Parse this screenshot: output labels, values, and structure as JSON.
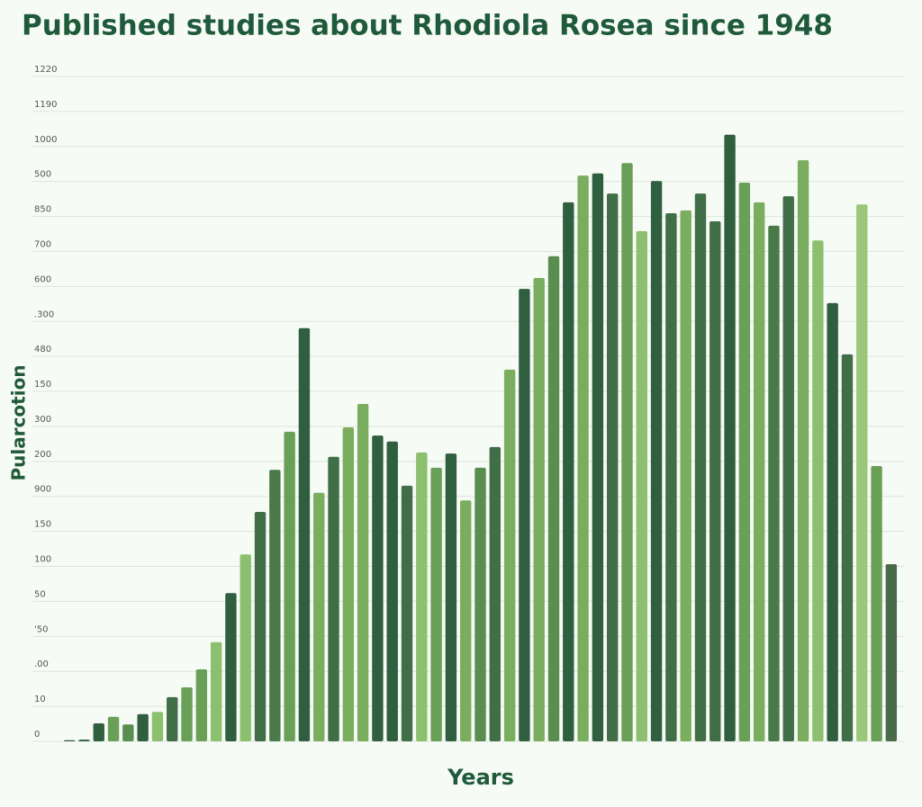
{
  "chart_data": {
    "type": "bar",
    "title": "Published studies about Rhodiola Rosea since 1948",
    "x_label": "Years",
    "y_label": "Pularcotion",
    "categories": [
      null,
      null,
      null,
      null,
      null,
      null,
      null,
      null,
      null,
      null,
      null,
      null,
      null,
      null,
      null,
      null,
      null,
      null,
      null,
      null,
      null,
      null,
      null,
      null,
      null,
      null,
      null,
      null,
      null,
      null,
      null,
      null,
      null,
      null,
      null,
      null,
      null,
      null,
      null,
      null,
      null,
      null,
      null,
      null,
      null,
      null,
      null,
      null,
      null,
      null,
      null,
      null,
      null,
      null,
      null,
      null,
      null
    ],
    "values": [
      2,
      3,
      33,
      45,
      31,
      50,
      54,
      81,
      99,
      132,
      182,
      272,
      343,
      421,
      498,
      568,
      758,
      456,
      522,
      576,
      619,
      561,
      550,
      469,
      530,
      502,
      528,
      442,
      502,
      540,
      682,
      830,
      850,
      890,
      989,
      1038,
      1042,
      1005,
      1061,
      936,
      1028,
      969,
      974,
      1005,
      954,
      1113,
      1025,
      989,
      946,
      1000,
      1066,
      919,
      804,
      710,
      985,
      505,
      325
    ],
    "colors": [
      "#2f5f3f",
      "#2f5f3f",
      "#2f5f3f",
      "#6a9f58",
      "#5a8d50",
      "#2f5f3f",
      "#8cbf6e",
      "#3f6e47",
      "#6a9f58",
      "#6a9f58",
      "#8cbf6e",
      "#2f5f3f",
      "#8cbf6e",
      "#3f6e47",
      "#4a7a4a",
      "#6a9f58",
      "#2f5f3f",
      "#7aad5e",
      "#3f6e47",
      "#7aad5e",
      "#7aad5e",
      "#2f5f3f",
      "#2f5f3f",
      "#3f6e47",
      "#8cbf6e",
      "#6a9f58",
      "#2f5f3f",
      "#7aad5e",
      "#5a8d50",
      "#3f6e47",
      "#7aad5e",
      "#2f5f3f",
      "#7aad5e",
      "#5a8d50",
      "#2f5f3f",
      "#7aad5e",
      "#2f5f3f",
      "#3f6e47",
      "#6a9f58",
      "#8cbf6e",
      "#2f5f3f",
      "#3f6e47",
      "#7aad5e",
      "#3f6e47",
      "#3f6e47",
      "#2f5f3f",
      "#6a9f58",
      "#7aad5e",
      "#4a7a4a",
      "#3f6e47",
      "#7aad5e",
      "#8cbf6e",
      "#2f5f3f",
      "#3f6e47",
      "#9cc77a",
      "#6a9f58",
      "#4a6a4a"
    ],
    "ylim": [
      0,
      1219.8
    ],
    "yticks": [
      0,
      {
        "value": 64.2,
        "label": "10"
      },
      {
        "value": 128.4,
        "label": ".00"
      },
      {
        "value": 192.6,
        "label": "'50"
      },
      {
        "value": 256.8,
        "label": "50"
      },
      {
        "value": 321,
        "label": "100"
      },
      {
        "value": 385.2,
        "label": "150"
      },
      {
        "value": 449.4,
        "label": "900"
      },
      {
        "value": 513.6,
        "label": "200"
      },
      {
        "value": 577.8,
        "label": "300"
      },
      {
        "value": 642,
        "label": "150"
      },
      {
        "value": 706.2,
        "label": "480"
      },
      {
        "value": 770.4,
        "label": ".300"
      },
      {
        "value": 834.6,
        "label": "600"
      },
      {
        "value": 898.8,
        "label": "700"
      },
      {
        "value": 963,
        "label": "850"
      },
      {
        "value": 1027.2,
        "label": "500"
      },
      {
        "value": 1091.4,
        "label": "1000"
      },
      {
        "value": 1155.6,
        "label": "1190"
      },
      {
        "value": 1219.8,
        "label": "1220"
      }
    ],
    "grid": true
  }
}
